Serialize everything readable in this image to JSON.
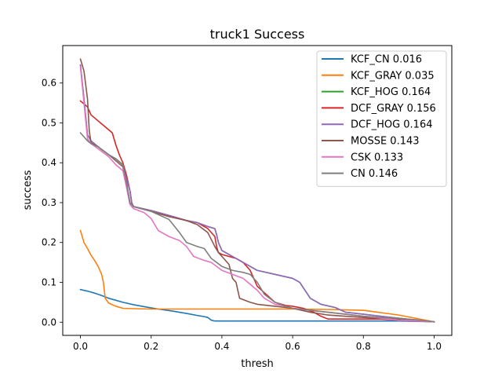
{
  "chart_data": {
    "type": "line",
    "title": "truck1 Success",
    "xlabel": "thresh",
    "ylabel": "success",
    "xlim": [
      -0.05,
      1.05
    ],
    "ylim": [
      -0.033,
      0.694
    ],
    "xticks": [
      0.0,
      0.2,
      0.4,
      0.6,
      0.8,
      1.0
    ],
    "xtick_labels": [
      "0.0",
      "0.2",
      "0.4",
      "0.6",
      "0.8",
      "1.0"
    ],
    "yticks": [
      0.0,
      0.1,
      0.2,
      0.3,
      0.4,
      0.5,
      0.6
    ],
    "ytick_labels": [
      "0.0",
      "0.1",
      "0.2",
      "0.3",
      "0.4",
      "0.5",
      "0.6"
    ],
    "grid": false,
    "legend_position": "top-right",
    "series": [
      {
        "name": "KCF_CN 0.016",
        "color": "#1f77b4",
        "x": [
          0,
          0.02,
          0.04,
          0.06,
          0.08,
          0.1,
          0.12,
          0.15,
          0.18,
          0.22,
          0.26,
          0.3,
          0.33,
          0.35,
          0.36,
          0.37,
          0.38,
          0.4,
          0.5,
          0.6,
          0.7,
          0.8,
          0.9,
          1.0
        ],
        "y": [
          0.082,
          0.078,
          0.073,
          0.067,
          0.06,
          0.055,
          0.05,
          0.044,
          0.039,
          0.033,
          0.028,
          0.022,
          0.017,
          0.014,
          0.012,
          0.005,
          0.003,
          0.003,
          0.003,
          0.003,
          0.003,
          0.003,
          0.003,
          0.001
        ]
      },
      {
        "name": "KCF_GRAY 0.035",
        "color": "#ff7f0e",
        "x": [
          0,
          0.01,
          0.02,
          0.03,
          0.04,
          0.05,
          0.06,
          0.065,
          0.07,
          0.08,
          0.1,
          0.12,
          0.15,
          0.2,
          0.3,
          0.4,
          0.5,
          0.6,
          0.7,
          0.8,
          0.9,
          1.0
        ],
        "y": [
          0.23,
          0.2,
          0.185,
          0.168,
          0.155,
          0.14,
          0.12,
          0.1,
          0.06,
          0.048,
          0.04,
          0.035,
          0.034,
          0.033,
          0.033,
          0.033,
          0.033,
          0.033,
          0.032,
          0.03,
          0.018,
          0.001
        ]
      },
      {
        "name": "KCF_HOG 0.164",
        "color": "#2ca02c",
        "x": [
          0,
          0.01,
          0.02,
          0.03,
          0.05,
          0.08,
          0.1,
          0.12,
          0.13,
          0.14,
          0.145,
          0.15,
          0.2,
          0.25,
          0.3,
          0.33,
          0.36,
          0.38,
          0.385,
          0.39,
          0.4,
          0.44,
          0.48,
          0.5,
          0.55,
          0.6,
          0.62,
          0.65,
          0.68,
          0.72,
          0.75,
          0.8,
          0.85,
          0.9,
          0.95,
          1.0
        ],
        "y": [
          0.645,
          0.56,
          0.47,
          0.455,
          0.44,
          0.42,
          0.41,
          0.395,
          0.36,
          0.33,
          0.3,
          0.29,
          0.28,
          0.268,
          0.255,
          0.25,
          0.24,
          0.235,
          0.22,
          0.2,
          0.18,
          0.16,
          0.14,
          0.13,
          0.12,
          0.11,
          0.1,
          0.06,
          0.045,
          0.037,
          0.025,
          0.02,
          0.015,
          0.01,
          0.005,
          0.001
        ]
      },
      {
        "name": "DCF_GRAY 0.156",
        "color": "#d62728",
        "x": [
          0,
          0.02,
          0.03,
          0.05,
          0.07,
          0.09,
          0.1,
          0.11,
          0.12,
          0.13,
          0.14,
          0.145,
          0.15,
          0.2,
          0.25,
          0.3,
          0.33,
          0.36,
          0.38,
          0.385,
          0.39,
          0.4,
          0.44,
          0.46,
          0.48,
          0.5,
          0.55,
          0.58,
          0.6,
          0.63,
          0.66,
          0.68,
          0.7,
          0.75,
          0.8,
          0.85,
          0.9,
          0.95,
          1.0
        ],
        "y": [
          0.555,
          0.54,
          0.52,
          0.505,
          0.49,
          0.475,
          0.445,
          0.42,
          0.4,
          0.37,
          0.33,
          0.3,
          0.29,
          0.28,
          0.268,
          0.255,
          0.25,
          0.235,
          0.215,
          0.19,
          0.175,
          0.17,
          0.16,
          0.15,
          0.13,
          0.09,
          0.05,
          0.042,
          0.04,
          0.035,
          0.025,
          0.015,
          0.008,
          0.008,
          0.008,
          0.008,
          0.005,
          0.003,
          0.001
        ]
      },
      {
        "name": "DCF_HOG 0.164",
        "color": "#9467bd",
        "x": [
          0,
          0.01,
          0.02,
          0.03,
          0.05,
          0.08,
          0.1,
          0.12,
          0.13,
          0.14,
          0.145,
          0.15,
          0.2,
          0.25,
          0.3,
          0.33,
          0.36,
          0.38,
          0.385,
          0.39,
          0.4,
          0.44,
          0.48,
          0.5,
          0.55,
          0.6,
          0.62,
          0.65,
          0.68,
          0.72,
          0.75,
          0.8,
          0.85,
          0.9,
          0.95,
          1.0
        ],
        "y": [
          0.645,
          0.56,
          0.47,
          0.455,
          0.44,
          0.42,
          0.41,
          0.395,
          0.36,
          0.33,
          0.3,
          0.29,
          0.28,
          0.268,
          0.255,
          0.25,
          0.24,
          0.235,
          0.22,
          0.2,
          0.18,
          0.16,
          0.14,
          0.13,
          0.12,
          0.11,
          0.1,
          0.06,
          0.045,
          0.037,
          0.025,
          0.02,
          0.015,
          0.01,
          0.005,
          0.001
        ]
      },
      {
        "name": "MOSSE 0.143",
        "color": "#8c564b",
        "x": [
          0,
          0.01,
          0.02,
          0.025,
          0.03,
          0.05,
          0.08,
          0.1,
          0.12,
          0.13,
          0.14,
          0.15,
          0.2,
          0.25,
          0.3,
          0.33,
          0.36,
          0.38,
          0.39,
          0.4,
          0.42,
          0.43,
          0.44,
          0.45,
          0.48,
          0.5,
          0.55,
          0.6,
          0.65,
          0.7,
          0.75,
          0.8,
          0.85,
          0.9,
          0.95,
          1.0
        ],
        "y": [
          0.66,
          0.63,
          0.56,
          0.48,
          0.45,
          0.44,
          0.42,
          0.405,
          0.39,
          0.35,
          0.3,
          0.29,
          0.278,
          0.265,
          0.255,
          0.245,
          0.225,
          0.19,
          0.175,
          0.165,
          0.145,
          0.11,
          0.1,
          0.06,
          0.05,
          0.045,
          0.04,
          0.035,
          0.025,
          0.018,
          0.015,
          0.012,
          0.01,
          0.008,
          0.005,
          0.001
        ]
      },
      {
        "name": "CSK 0.133",
        "color": "#e377c2",
        "x": [
          0,
          0.01,
          0.02,
          0.03,
          0.05,
          0.08,
          0.1,
          0.12,
          0.13,
          0.14,
          0.15,
          0.18,
          0.2,
          0.22,
          0.25,
          0.28,
          0.3,
          0.32,
          0.35,
          0.37,
          0.4,
          0.43,
          0.46,
          0.48,
          0.5,
          0.52,
          0.55,
          0.58,
          0.6,
          0.65,
          0.7,
          0.75,
          0.8,
          0.85,
          0.9,
          0.95,
          1.0
        ],
        "y": [
          0.64,
          0.55,
          0.46,
          0.448,
          0.435,
          0.415,
          0.395,
          0.38,
          0.34,
          0.295,
          0.285,
          0.275,
          0.26,
          0.23,
          0.215,
          0.205,
          0.19,
          0.165,
          0.155,
          0.15,
          0.13,
          0.12,
          0.11,
          0.095,
          0.08,
          0.06,
          0.045,
          0.04,
          0.035,
          0.03,
          0.025,
          0.02,
          0.015,
          0.01,
          0.005,
          0.003,
          0.001
        ]
      },
      {
        "name": "CN 0.146",
        "color": "#7f7f7f",
        "x": [
          0,
          0.01,
          0.02,
          0.03,
          0.05,
          0.08,
          0.1,
          0.12,
          0.13,
          0.14,
          0.15,
          0.2,
          0.25,
          0.28,
          0.3,
          0.33,
          0.35,
          0.37,
          0.4,
          0.43,
          0.46,
          0.48,
          0.5,
          0.52,
          0.55,
          0.58,
          0.6,
          0.65,
          0.7,
          0.75,
          0.8,
          0.85,
          0.9,
          0.95,
          1.0
        ],
        "y": [
          0.475,
          0.465,
          0.455,
          0.448,
          0.44,
          0.42,
          0.41,
          0.395,
          0.35,
          0.3,
          0.29,
          0.278,
          0.258,
          0.225,
          0.2,
          0.19,
          0.185,
          0.16,
          0.14,
          0.13,
          0.125,
          0.12,
          0.1,
          0.07,
          0.05,
          0.04,
          0.035,
          0.03,
          0.025,
          0.02,
          0.015,
          0.012,
          0.01,
          0.006,
          0.001
        ]
      }
    ]
  }
}
